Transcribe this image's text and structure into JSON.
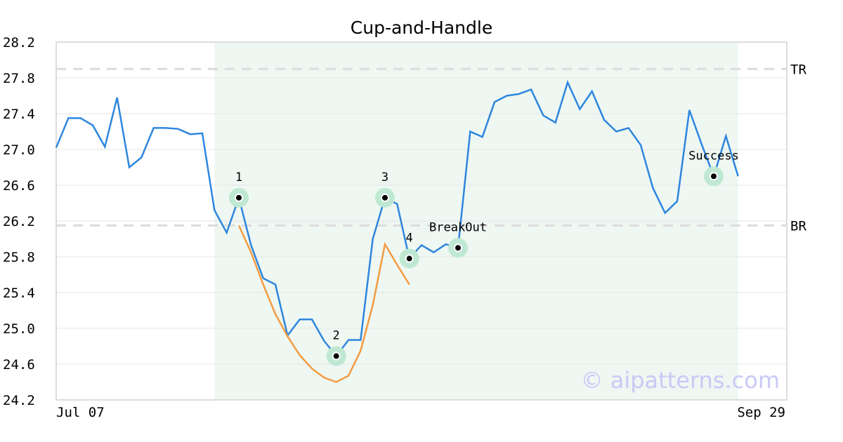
{
  "chart_data": {
    "type": "line",
    "title": "Cup-and-Handle",
    "categories": [
      "Jul 07",
      null,
      null,
      null,
      null,
      null,
      null,
      null,
      null,
      null,
      null,
      null,
      null,
      null,
      null,
      null,
      null,
      null,
      null,
      null,
      null,
      null,
      null,
      null,
      null,
      null,
      null,
      null,
      null,
      null,
      null,
      null,
      null,
      null,
      null,
      null,
      null,
      null,
      null,
      null,
      null,
      null,
      null,
      null,
      null,
      null,
      null,
      null,
      null,
      null,
      null,
      null,
      null,
      null,
      null,
      null,
      null,
      null,
      null,
      null,
      "Sep 29"
    ],
    "series": [
      {
        "color": "#2e86de",
        "values": [
          27.02,
          27.35,
          27.35,
          27.27,
          27.03,
          27.58,
          26.8,
          26.91,
          27.24,
          27.24,
          27.23,
          27.17,
          27.18,
          26.32,
          26.07,
          26.46,
          25.93,
          25.56,
          25.49,
          24.92,
          25.1,
          25.1,
          24.86,
          24.69,
          24.87,
          24.87,
          26.0,
          26.46,
          26.39,
          25.78,
          25.93,
          25.85,
          25.94,
          25.9,
          27.2,
          27.14,
          27.53,
          27.6,
          27.62,
          27.67,
          27.38,
          27.3,
          27.75,
          27.45,
          27.65,
          27.33,
          27.2,
          27.24,
          27.05,
          26.57,
          26.29,
          26.42,
          27.44,
          27.06,
          26.7,
          27.15,
          26.7,
          null,
          null,
          null,
          null
        ]
      },
      {
        "color": "#f39c42",
        "values": [
          null,
          null,
          null,
          null,
          null,
          null,
          null,
          null,
          null,
          null,
          null,
          null,
          null,
          null,
          null,
          26.15,
          25.85,
          25.49,
          25.16,
          24.91,
          24.7,
          24.55,
          24.45,
          24.4,
          24.47,
          24.75,
          25.26,
          25.94,
          25.71,
          25.49,
          null,
          null,
          null,
          null,
          null,
          null,
          null,
          null,
          null,
          null,
          null,
          null,
          null,
          null,
          null,
          null,
          null,
          null,
          null,
          null,
          null,
          null,
          null,
          null,
          null,
          null,
          null,
          null,
          null,
          null,
          null
        ]
      }
    ],
    "annotations": [
      {
        "label": "1",
        "index": 15
      },
      {
        "label": "2",
        "index": 23
      },
      {
        "label": "3",
        "index": 27
      },
      {
        "label": "4",
        "index": 29
      },
      {
        "label": "BreakOut",
        "index": 33
      },
      {
        "label": "Success",
        "index": 54
      }
    ],
    "highlight": [
      13,
      56
    ],
    "reference_lines": [
      {
        "label": "TR",
        "value": 27.9
      },
      {
        "label": "BR",
        "value": 26.15
      }
    ],
    "ylim": [
      24.2,
      28.2
    ],
    "yticks": [
      {
        "value": 24.2,
        "label": "24.2"
      },
      {
        "value": 24.6,
        "label": "24.6"
      },
      {
        "value": 25.0,
        "label": "25.0"
      },
      {
        "value": 25.4,
        "label": "25.4"
      },
      {
        "value": 25.8,
        "label": "25.8"
      },
      {
        "value": 26.2,
        "label": "26.2"
      },
      {
        "value": 26.6,
        "label": "26.6"
      },
      {
        "value": 27.0,
        "label": "27.0"
      },
      {
        "value": 27.4,
        "label": "27.4"
      },
      {
        "value": 27.8,
        "label": "27.8"
      },
      {
        "value": 28.2,
        "label": "28.2"
      }
    ],
    "grid": true,
    "watermark": "© aipatterns.com"
  }
}
